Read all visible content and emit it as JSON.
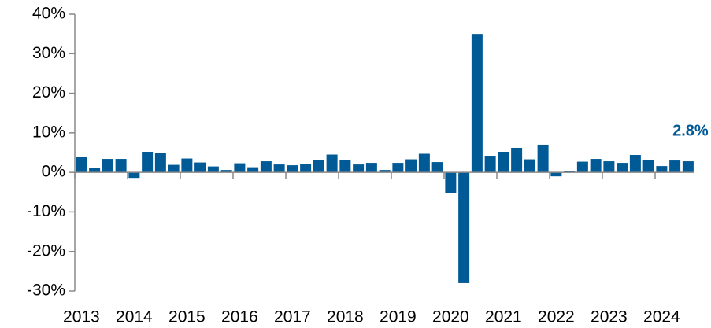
{
  "chart_data": {
    "type": "bar",
    "color": "#005a96",
    "categories": [
      "2013",
      null,
      null,
      null,
      "2014",
      null,
      null,
      null,
      "2015",
      null,
      null,
      null,
      "2016",
      null,
      null,
      null,
      "2017",
      null,
      null,
      null,
      "2018",
      null,
      null,
      null,
      "2019",
      null,
      null,
      null,
      "2020",
      null,
      null,
      null,
      "2021",
      null,
      null,
      null,
      "2022",
      null,
      null,
      null,
      "2023",
      null,
      null,
      null,
      "2024",
      null,
      null
    ],
    "values": [
      3.9,
      1.1,
      3.4,
      3.4,
      -1.4,
      5.2,
      4.9,
      1.9,
      3.5,
      2.5,
      1.5,
      0.6,
      2.3,
      1.3,
      2.8,
      2.0,
      1.8,
      2.2,
      3.1,
      4.5,
      3.2,
      2.0,
      2.4,
      0.6,
      2.4,
      3.3,
      4.7,
      2.6,
      -5.3,
      -28.0,
      35.0,
      4.2,
      5.2,
      6.2,
      3.3,
      7.0,
      -1.0,
      0.3,
      2.7,
      3.4,
      2.8,
      2.4,
      4.4,
      3.2,
      1.6,
      3.0,
      2.8
    ],
    "value_labels": [
      null,
      null,
      null,
      null,
      null,
      null,
      null,
      null,
      null,
      null,
      null,
      null,
      null,
      null,
      null,
      null,
      null,
      null,
      null,
      null,
      null,
      null,
      null,
      null,
      null,
      null,
      null,
      null,
      null,
      null,
      null,
      null,
      null,
      null,
      null,
      null,
      null,
      null,
      null,
      null,
      null,
      null,
      null,
      null,
      null,
      null,
      "2.8%"
    ],
    "ylim": [
      -30,
      40
    ],
    "yticks": [
      {
        "value": -30,
        "label": "-30%"
      },
      {
        "value": -20,
        "label": "-20%"
      },
      {
        "value": -10,
        "label": "-10%"
      },
      {
        "value": 0,
        "label": "0%"
      },
      {
        "value": 10,
        "label": "10%"
      },
      {
        "value": 20,
        "label": "20%"
      },
      {
        "value": 30,
        "label": "30%"
      },
      {
        "value": 40,
        "label": "40%"
      }
    ]
  }
}
